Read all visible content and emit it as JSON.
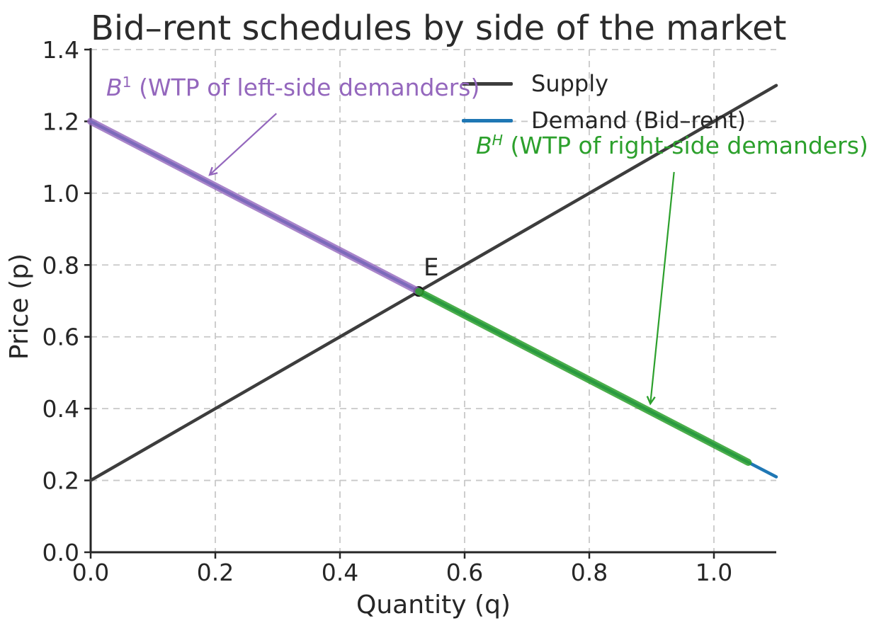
{
  "title": "Bid–rent schedules by side of the market",
  "axes": {
    "xlabel": "Quantity (q)",
    "ylabel": "Price (p)",
    "xlim": [
      0,
      1.1
    ],
    "ylim": [
      0,
      1.4
    ],
    "x_ticks": [
      0.0,
      0.2,
      0.4,
      0.6,
      0.8,
      1.0
    ],
    "x_tick_labels": [
      "0.0",
      "0.2",
      "0.4",
      "0.6",
      "0.8",
      "1.0"
    ],
    "y_ticks": [
      0.0,
      0.2,
      0.4,
      0.6,
      0.8,
      1.0,
      1.2,
      1.4
    ],
    "y_tick_labels": [
      "0.0",
      "0.2",
      "0.4",
      "0.6",
      "0.8",
      "1.0",
      "1.2",
      "1.4"
    ],
    "grid": "dashed"
  },
  "legend": {
    "position": "upper center-right, frameless",
    "items": [
      {
        "label": "Supply",
        "color": "#3d3d3d"
      },
      {
        "label": "Demand (Bid–rent)",
        "color": "#1f77b4"
      }
    ]
  },
  "annotations": {
    "left": {
      "symbol": "B",
      "sup": "1",
      "text": " (WTP of left-side demanders)",
      "color": "#9467bd"
    },
    "right": {
      "symbol": "B",
      "sup": "H",
      "text": " (WTP of right-side demanders)",
      "color": "#2ca02c"
    },
    "equilibrium_label": "E"
  },
  "style": {
    "grid_color": "#c8c8c8",
    "spine_color": "#262626",
    "text_color": "#262626",
    "background": "#ffffff"
  },
  "chart_data": {
    "type": "line",
    "title": "Bid–rent schedules by side of the market",
    "xlabel": "Quantity (q)",
    "ylabel": "Price (p)",
    "xlim": [
      0,
      1.1
    ],
    "ylim": [
      0,
      1.4
    ],
    "series": [
      {
        "name": "Supply",
        "color": "#3d3d3d",
        "width": 4.5,
        "opacity": 1,
        "x": [
          0,
          1.1
        ],
        "y": [
          0.2,
          1.3
        ]
      },
      {
        "name": "Demand (Bid-rent)",
        "color": "#1f77b4",
        "width": 4.5,
        "opacity": 1,
        "x": [
          0,
          1.1
        ],
        "y": [
          1.2,
          0.21
        ]
      },
      {
        "name": "B1 segment (WTP of left-side demanders)",
        "color": "#9467bd",
        "width": 10,
        "opacity": 0.8,
        "x": [
          0,
          0.5263
        ],
        "y": [
          1.2,
          0.7263
        ]
      },
      {
        "name": "BH segment (WTP of right-side demanders)",
        "color": "#2ca02c",
        "width": 10,
        "opacity": 0.85,
        "x": [
          0.5263,
          1.055
        ],
        "y": [
          0.7263,
          0.2505
        ]
      }
    ],
    "equilibrium_point": {
      "label": "E",
      "x": 0.5263,
      "y": 0.7263
    },
    "arrows": [
      {
        "name": "left-annotation-arrow",
        "color": "#9467bd",
        "from": [
          0.298,
          1.222
        ],
        "to": [
          0.191,
          1.051
        ]
      },
      {
        "name": "right-annotation-arrow",
        "color": "#2ca02c",
        "from": [
          0.936,
          1.059
        ],
        "to": [
          0.898,
          0.414
        ]
      }
    ]
  }
}
